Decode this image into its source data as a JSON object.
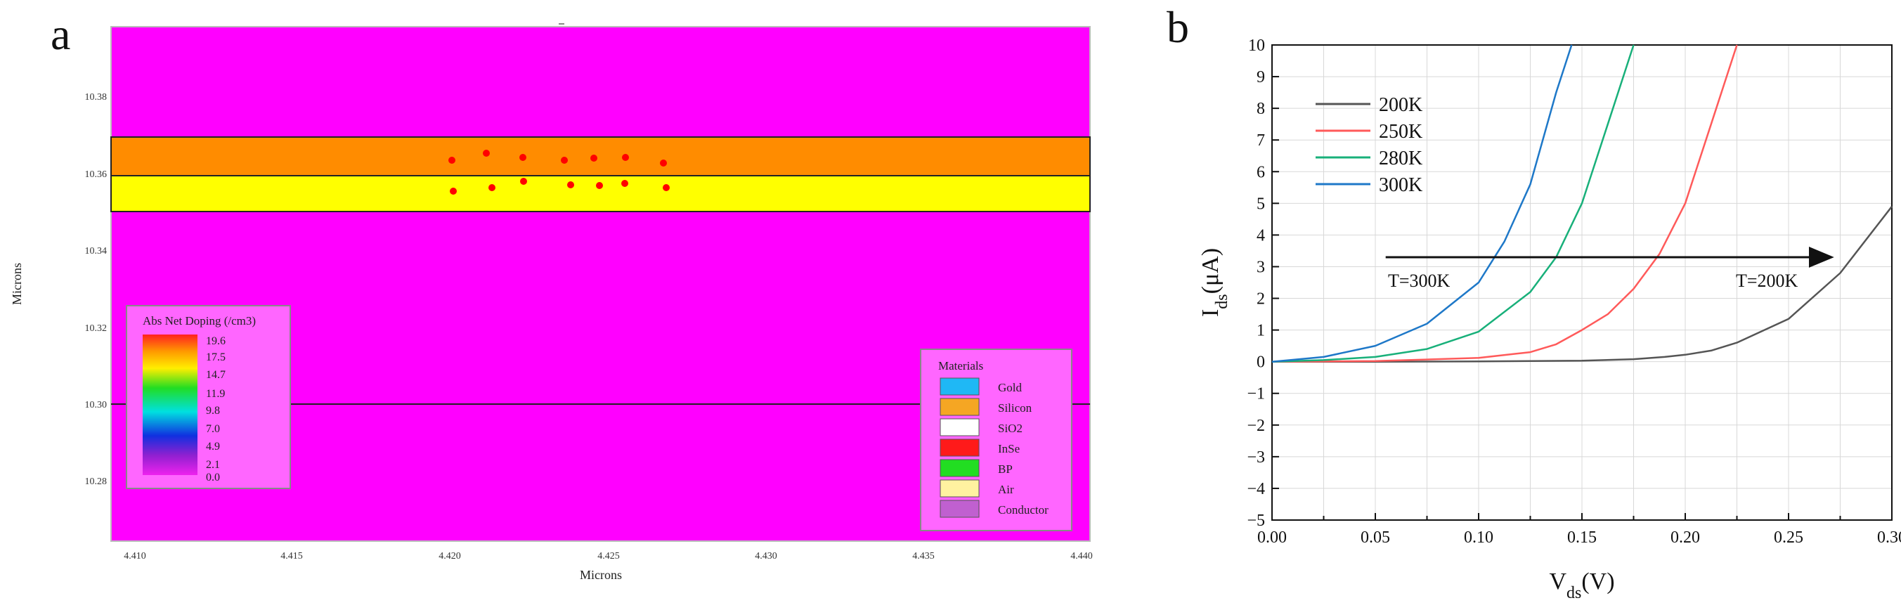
{
  "panel_a": {
    "letter": "a",
    "xlabel": "Microns",
    "ylabel": "Microns",
    "x_ticks": [
      "4.410",
      "4.415",
      "4.420",
      "4.425",
      "4.430",
      "4.435",
      "4.440"
    ],
    "y_ticks": [
      "10.38",
      "10.36",
      "10.34",
      "10.32",
      "10.30",
      "10.28"
    ],
    "legend_doping": {
      "title": "Abs Net Doping (/cm3)",
      "labels": [
        "19.6",
        "17.5",
        "14.7",
        "11.9",
        "9.8",
        "7.0",
        "4.9",
        "2.1",
        "0.0"
      ]
    },
    "legend_materials": {
      "title": "Materials",
      "items": [
        {
          "label": "Gold",
          "color": "#1fb8f5"
        },
        {
          "label": "Silicon",
          "color": "#f5a623"
        },
        {
          "label": "SiO2",
          "color": "#ffffff"
        },
        {
          "label": "InSe",
          "color": "#ff1a1a"
        },
        {
          "label": "BP",
          "color": "#22dd22"
        },
        {
          "label": "Air",
          "color": "#fff2a0"
        },
        {
          "label": "Conductor",
          "color": "#c060d0"
        }
      ]
    },
    "colors": {
      "background": "#ff00ff",
      "layer_top": "#ff8c00",
      "layer_bottom": "#ffff00",
      "dots": "#ff0000"
    }
  },
  "chart_data": {
    "type": "line",
    "panel_letter": "b",
    "title": "",
    "xlabel": "Vds(V)",
    "xlabel_main": "V",
    "xlabel_sub": "ds",
    "xlabel_unit": "(V)",
    "ylabel": "Ids(μA)",
    "ylabel_main": "I",
    "ylabel_sub": "ds",
    "ylabel_unit": "(μA)",
    "xlim": [
      0,
      0.3
    ],
    "ylim": [
      -5,
      10
    ],
    "x_ticks": [
      "0.00",
      "0.05",
      "0.10",
      "0.15",
      "0.20",
      "0.25",
      "0.30"
    ],
    "y_ticks": [
      "-5",
      "-4",
      "-3",
      "-2",
      "-1",
      "0",
      "1",
      "2",
      "3",
      "4",
      "5",
      "6",
      "7",
      "8",
      "9",
      "10"
    ],
    "grid": true,
    "legend_position": "top-left",
    "series": [
      {
        "name": "200K",
        "color": "#555555",
        "x": [
          0,
          0.05,
          0.1,
          0.15,
          0.175,
          0.19,
          0.2,
          0.2125,
          0.225,
          0.25,
          0.275,
          0.3
        ],
        "y": [
          0,
          0,
          0.01,
          0.03,
          0.08,
          0.15,
          0.22,
          0.35,
          0.6,
          1.35,
          2.8,
          4.9
        ]
      },
      {
        "name": "250K",
        "color": "#ff5a5a",
        "x": [
          0,
          0.05,
          0.1,
          0.125,
          0.1375,
          0.15,
          0.1625,
          0.175,
          0.1875,
          0.2,
          0.2125,
          0.225
        ],
        "y": [
          0,
          0.02,
          0.12,
          0.3,
          0.55,
          1.0,
          1.5,
          2.3,
          3.4,
          5.0,
          7.5,
          10
        ]
      },
      {
        "name": "280K",
        "color": "#18b07a",
        "x": [
          0,
          0.025,
          0.05,
          0.075,
          0.1,
          0.125,
          0.1375,
          0.15,
          0.1625,
          0.175
        ],
        "y": [
          0,
          0.05,
          0.15,
          0.4,
          0.95,
          2.2,
          3.3,
          5.0,
          7.5,
          10
        ]
      },
      {
        "name": "300K",
        "color": "#1e78c8",
        "x": [
          0,
          0.025,
          0.05,
          0.075,
          0.1,
          0.1125,
          0.125,
          0.1375,
          0.145
        ],
        "y": [
          0,
          0.15,
          0.5,
          1.2,
          2.5,
          3.8,
          5.6,
          8.5,
          10
        ]
      }
    ],
    "annotations": [
      {
        "text": "T=300K"
      },
      {
        "text": "T=200K"
      }
    ],
    "arrow": {
      "x_start": 0.055,
      "x_end": 0.27,
      "y": 3.3
    }
  }
}
